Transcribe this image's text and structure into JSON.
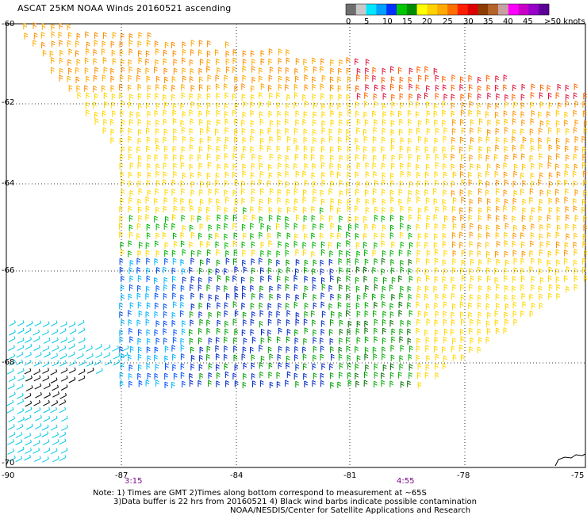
{
  "map": {
    "title": "ASCAT 25KM NOAA Winds 20160521 ascending",
    "lat_ticks": [
      "-60",
      "-62",
      "-64",
      "-66",
      "-68",
      "-70"
    ],
    "lon_ticks": [
      "-90",
      "-87",
      "-84",
      "-81",
      "-78",
      "-75"
    ],
    "time_labels": [
      "3:15",
      "4:55"
    ],
    "notes": [
      "Note: 1) Times are GMT 2)Times along bottom correspond to measurement at ~65S",
      "3)Data buffer is 22 hrs from 20160521 4) Black wind barbs indicate possible contamination",
      "NOAA/NESDIS/Center for Satellite Applications and Research"
    ]
  },
  "colorbar": {
    "labels": [
      "0",
      "5",
      "10",
      "15",
      "20",
      "25",
      "30",
      "35",
      "40",
      "45",
      ">50 knots"
    ],
    "colors": [
      "#6e6e6e",
      "#c8c8c8",
      "#00e6ff",
      "#00a0ff",
      "#0032ff",
      "#00c800",
      "#008c00",
      "#ffff00",
      "#ffd200",
      "#ffaa00",
      "#ff6e00",
      "#ff1e00",
      "#dc0000",
      "#8c3c00",
      "#b46428",
      "#c8a0a0",
      "#ff00ff",
      "#c800c8",
      "#9600c8",
      "#5a0096"
    ]
  }
}
